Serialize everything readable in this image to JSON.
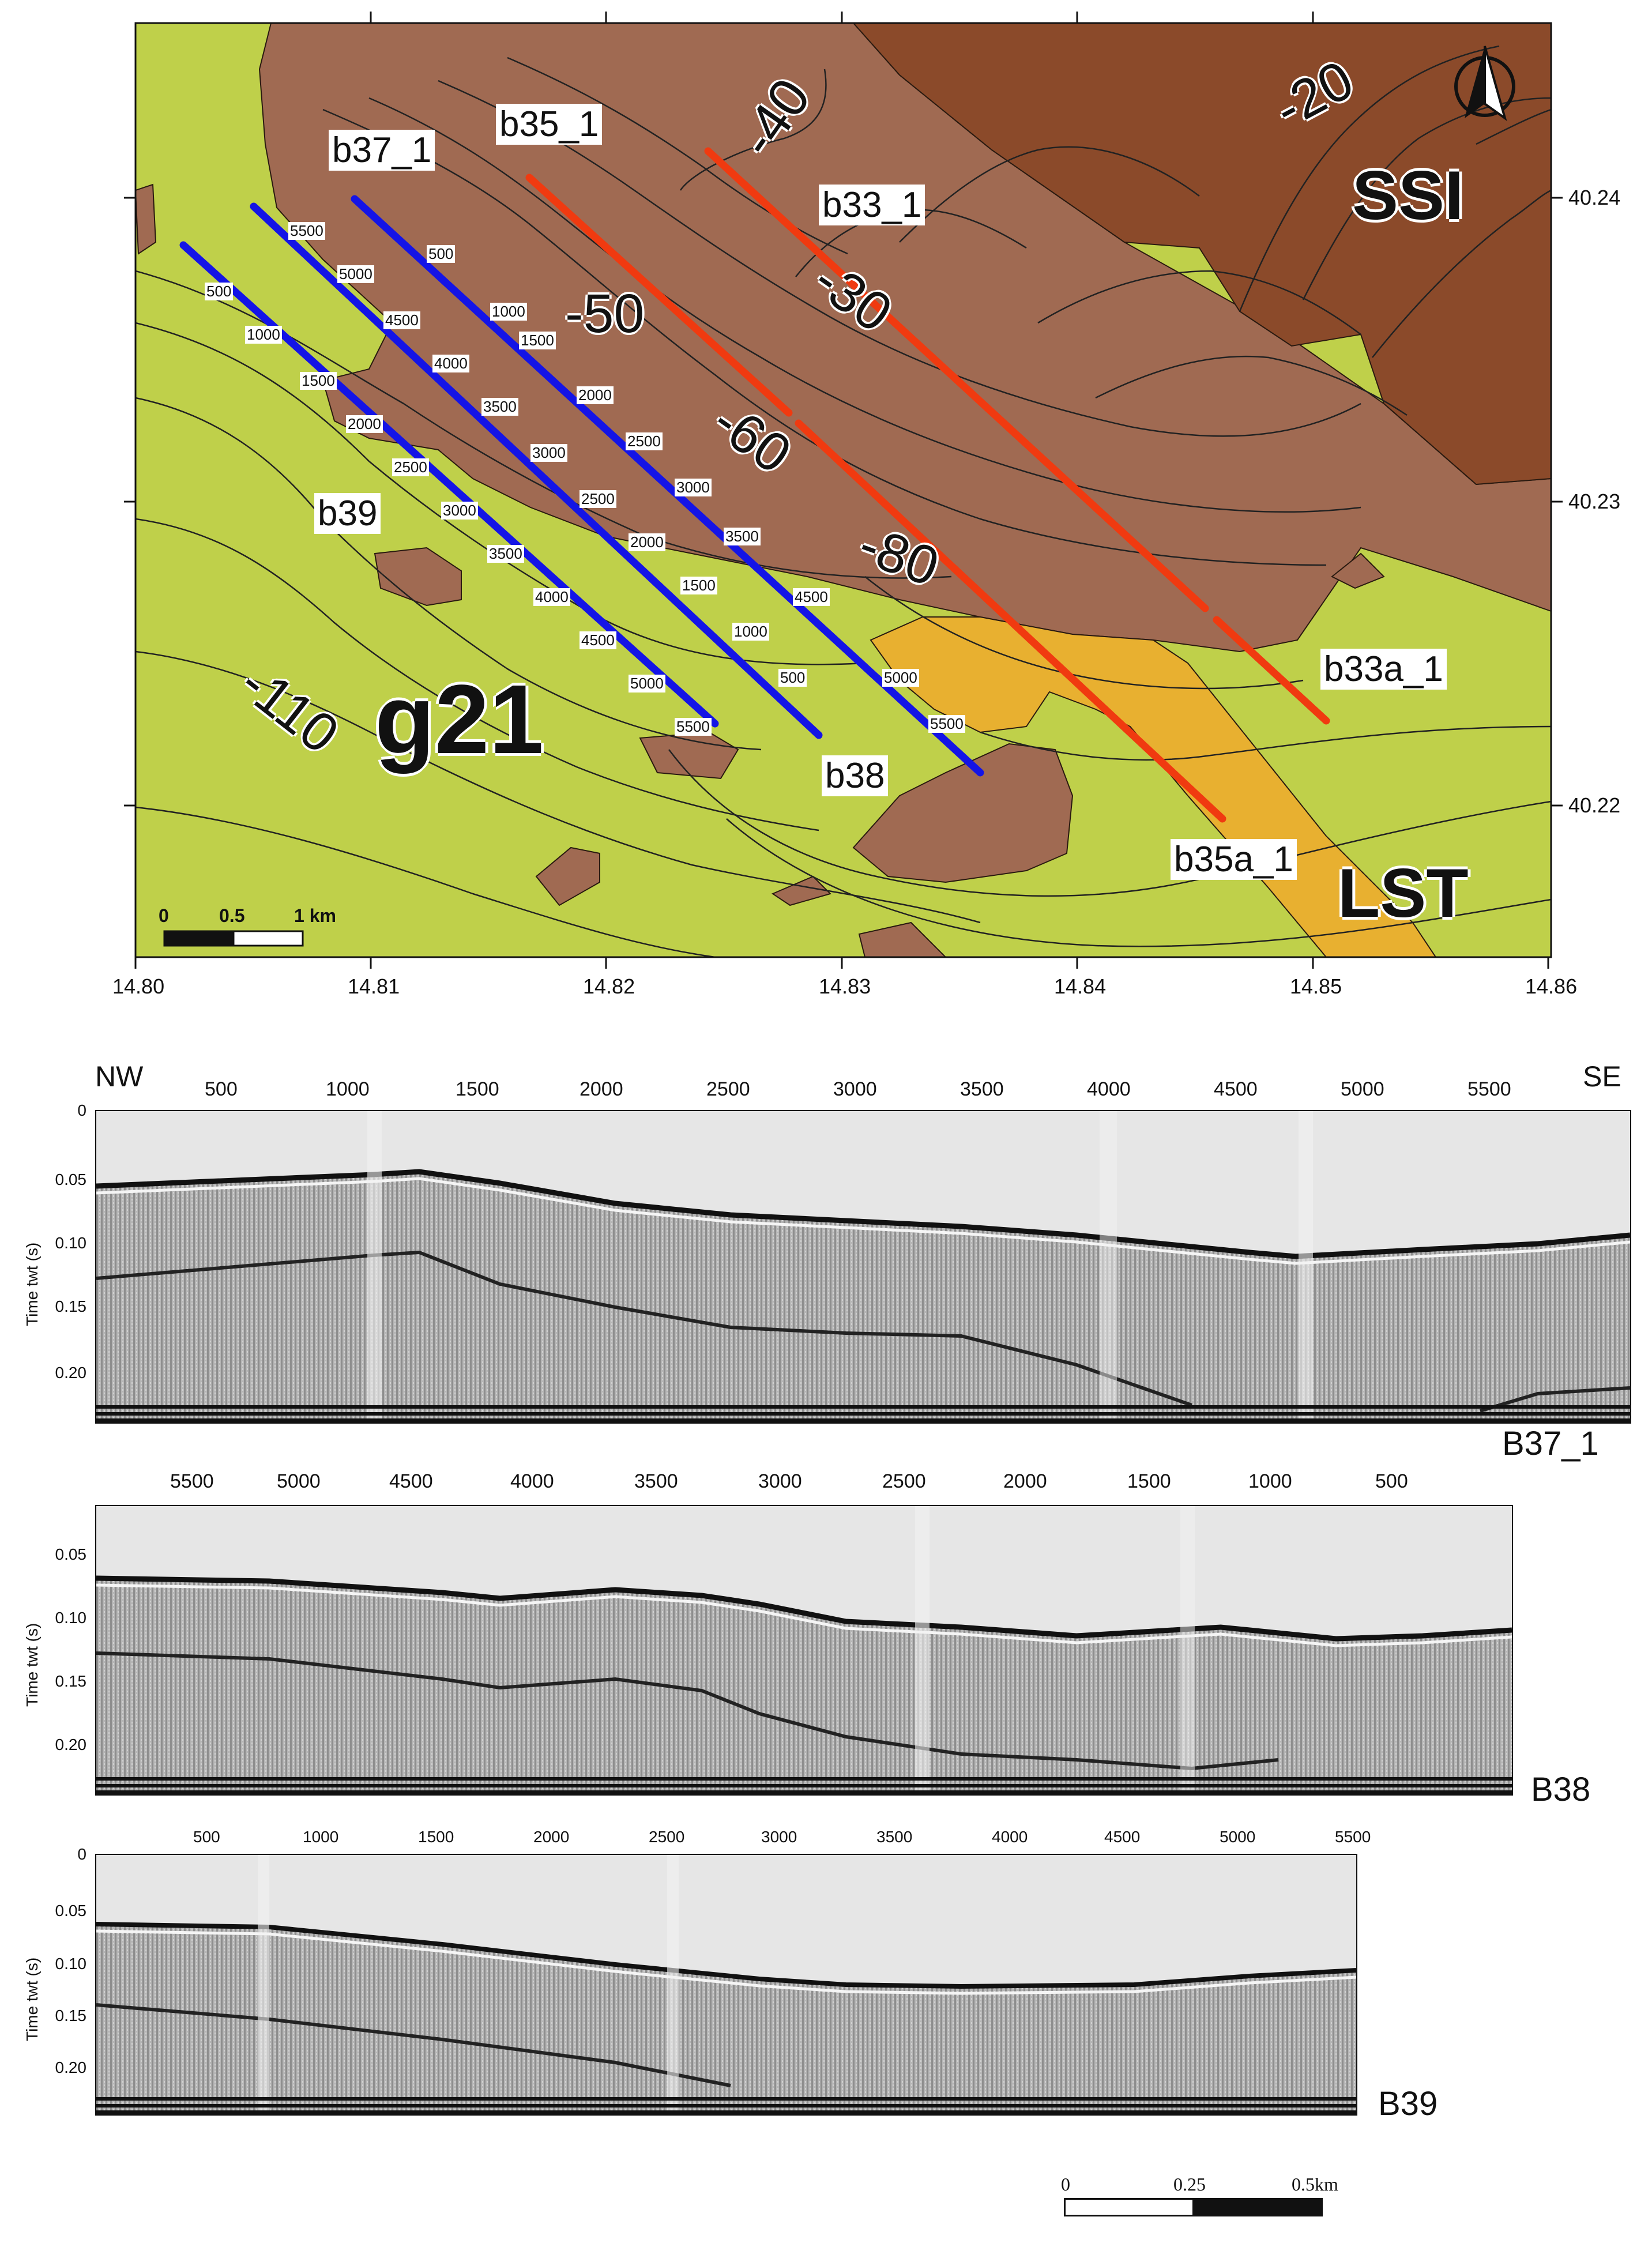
{
  "map": {
    "x_ticks": [
      "14.80",
      "14.81",
      "14.82",
      "14.83",
      "14.84",
      "14.85",
      "14.86"
    ],
    "y_ticks": [
      "40.24",
      "40.23",
      "40.22"
    ],
    "unit_labels": {
      "g21": "g21",
      "ssi": "SSI",
      "lst": "LST"
    },
    "contour_labels": [
      "-20",
      "-30",
      "-40",
      "-50",
      "-60",
      "-80",
      "-110"
    ],
    "line_labels": {
      "b37_1": "b37_1",
      "b35_1": "b35_1",
      "b33_1": "b33_1",
      "b39": "b39",
      "b38": "b38",
      "b33a_1": "b33a_1",
      "b35a_1": "b35a_1"
    },
    "line_colors": {
      "blue": "#1414e6",
      "red": "#f03a10"
    },
    "unit_colors": {
      "g21": "#bfd04a",
      "mid": "#a06a52",
      "ssi": "#8b4a2a",
      "lst": "#e8b030"
    },
    "shot_labels_b39": [
      "500",
      "1000",
      "1500",
      "2000",
      "2500",
      "3000",
      "3500",
      "4000",
      "4500",
      "5000",
      "5500"
    ],
    "shot_labels_b37": [
      "5500",
      "5000",
      "4500",
      "4000",
      "3500",
      "3000",
      "2500",
      "2000",
      "1500",
      "1000",
      "500"
    ],
    "shot_labels_b38": [
      "500",
      "1000",
      "1500",
      "2000",
      "2500",
      "3000",
      "3500",
      "4500",
      "5000",
      "5500"
    ],
    "scale_bar": {
      "labels": [
        "0",
        "0.5",
        "1 km"
      ]
    },
    "north_arrow_icon": "north-arrow-icon"
  },
  "profiles": {
    "b37": {
      "name": "B37_1",
      "left_end": "NW",
      "right_end": "SE",
      "x_ticks": [
        "500",
        "1000",
        "1500",
        "2000",
        "2500",
        "3000",
        "3500",
        "4000",
        "4500",
        "5000",
        "5500"
      ],
      "y_ticks": [
        "0",
        "0.05",
        "0.10",
        "0.15",
        "0.20"
      ],
      "ylabel": "Time twt (s)"
    },
    "b38": {
      "name": "B38",
      "x_ticks": [
        "5500",
        "5000",
        "4500",
        "4000",
        "3500",
        "3000",
        "2500",
        "2000",
        "1500",
        "1000",
        "500"
      ],
      "y_ticks": [
        "0.05",
        "0.10",
        "0.15",
        "0.20"
      ],
      "ylabel": "Time twt (s)"
    },
    "b39": {
      "name": "B39",
      "x_ticks": [
        "500",
        "1000",
        "1500",
        "2000",
        "2500",
        "3000",
        "3500",
        "4000",
        "4500",
        "5000",
        "5500"
      ],
      "y_ticks": [
        "0",
        "0.05",
        "0.10",
        "0.15",
        "0.20"
      ],
      "ylabel": "Time twt (s)"
    }
  },
  "profile_scale_bar": {
    "labels": [
      "0",
      "0.25",
      "0.5km"
    ]
  }
}
